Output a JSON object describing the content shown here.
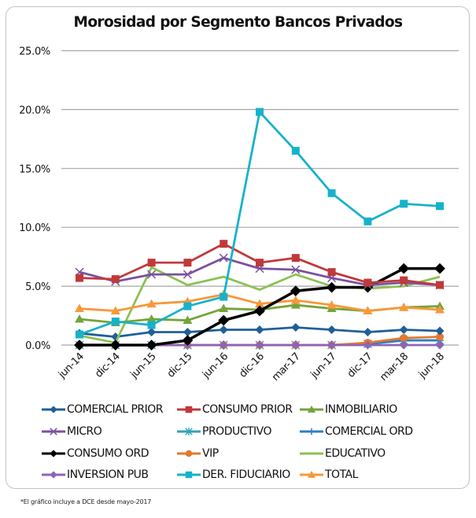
{
  "chart_data": {
    "type": "line",
    "title": "Morosidad por Segmento Bancos Privados",
    "xlabel": "",
    "ylabel": "",
    "ylim": [
      0,
      25
    ],
    "y_tick_labels": [
      "0.0%",
      "5.0%",
      "10.0%",
      "15.0%",
      "20.0%",
      "25.0%"
    ],
    "y_tick_values": [
      0,
      5,
      10,
      15,
      20,
      25
    ],
    "grid": true,
    "legend_position": "bottom",
    "categories": [
      "jun-14",
      "dic-14",
      "jun-15",
      "dic-15",
      "jun-16",
      "dic-16",
      "mar-17",
      "jun-17",
      "dic-17",
      "mar-18",
      "jun-18"
    ],
    "series": [
      {
        "name": "COMERCIAL PRIOR",
        "color": "#1f5f99",
        "marker": "diamond",
        "values": [
          1.0,
          0.7,
          1.1,
          1.1,
          1.3,
          1.3,
          1.5,
          1.3,
          1.1,
          1.3,
          1.2
        ]
      },
      {
        "name": "CONSUMO PRIOR",
        "color": "#c0393b",
        "marker": "square",
        "values": [
          5.7,
          5.6,
          7.0,
          7.0,
          8.6,
          7.0,
          7.4,
          6.2,
          5.3,
          5.5,
          5.1
        ]
      },
      {
        "name": "INMOBILIARIO",
        "color": "#74a43a",
        "marker": "triangle",
        "values": [
          2.2,
          1.9,
          2.2,
          2.1,
          3.1,
          3.0,
          3.4,
          3.1,
          2.9,
          3.2,
          3.3
        ]
      },
      {
        "name": "MICRO",
        "color": "#7a519e",
        "marker": "x",
        "values": [
          6.2,
          5.4,
          6.0,
          6.0,
          7.4,
          6.5,
          6.4,
          5.7,
          5.1,
          5.3,
          5.1
        ]
      },
      {
        "name": "PRODUCTIVO",
        "color": "#30a3b8",
        "marker": "star",
        "values": [
          0.0,
          0.0,
          0.0,
          0.0,
          0.0,
          0.0,
          0.0,
          0.0,
          0.1,
          0.4,
          0.4
        ]
      },
      {
        "name": "COMERCIAL ORD",
        "color": "#2e7fc4",
        "marker": "plus",
        "values": [
          0.0,
          0.0,
          0.0,
          0.0,
          0.0,
          0.0,
          0.0,
          0.0,
          0.1,
          0.4,
          0.4
        ]
      },
      {
        "name": "CONSUMO ORD",
        "color": "#000000",
        "marker": "diamond",
        "values": [
          0.0,
          0.0,
          0.0,
          0.4,
          2.1,
          2.9,
          4.6,
          4.9,
          4.9,
          6.5,
          6.5
        ]
      },
      {
        "name": "VIP",
        "color": "#e6782d",
        "marker": "circle",
        "values": [
          0.0,
          0.0,
          0.0,
          0.0,
          0.0,
          0.0,
          0.0,
          0.0,
          0.2,
          0.6,
          0.7
        ]
      },
      {
        "name": "EDUCATIVO",
        "color": "#8cc152",
        "marker": "none",
        "values": [
          0.8,
          0.2,
          6.6,
          5.1,
          5.8,
          4.7,
          6.0,
          5.0,
          4.8,
          5.0,
          5.8
        ]
      },
      {
        "name": "INVERSION PUB",
        "color": "#8f63b5",
        "marker": "diamond",
        "values": [
          0.0,
          0.0,
          0.0,
          0.0,
          0.0,
          0.0,
          0.0,
          0.0,
          0.0,
          0.0,
          0.0
        ]
      },
      {
        "name": "DER. FIDUCIARIO",
        "color": "#17b2c9",
        "marker": "square",
        "values": [
          0.9,
          2.0,
          1.7,
          3.3,
          4.1,
          19.8,
          16.5,
          12.9,
          10.5,
          12.0,
          11.8
        ]
      },
      {
        "name": "TOTAL",
        "color": "#f79839",
        "marker": "triangle",
        "values": [
          3.1,
          2.9,
          3.5,
          3.7,
          4.3,
          3.5,
          3.8,
          3.4,
          2.9,
          3.2,
          3.0
        ]
      }
    ],
    "footnote": "*El gráfico incluye a DCE desde mayo-2017"
  }
}
